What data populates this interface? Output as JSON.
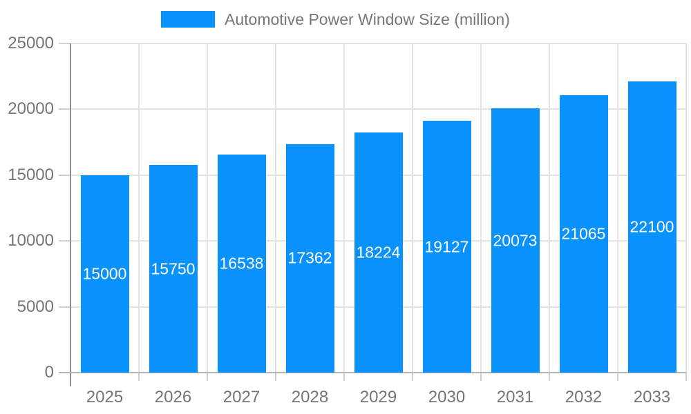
{
  "legend": {
    "label": "Automotive Power Window Size (million)"
  },
  "chart_data": {
    "type": "bar",
    "title": "Automotive Power Window Size (million)",
    "categories": [
      "2025",
      "2026",
      "2027",
      "2028",
      "2029",
      "2030",
      "2031",
      "2032",
      "2033"
    ],
    "values": [
      15000,
      15750,
      16538,
      17362,
      18224,
      19127,
      20073,
      21065,
      22100
    ],
    "value_labels": [
      "15000",
      "15750",
      "16538",
      "17362",
      "18224",
      "19127",
      "20073",
      "21065",
      "22100"
    ],
    "series": [
      {
        "name": "Automotive Power Window Size (million)",
        "values": [
          15000,
          15750,
          16538,
          17362,
          18224,
          19127,
          20073,
          21065,
          22100
        ]
      }
    ],
    "xlabel": "",
    "ylabel": "",
    "ylim": [
      0,
      25000
    ],
    "y_ticks": [
      0,
      5000,
      10000,
      15000,
      20000,
      25000
    ],
    "y_tick_labels": [
      "0",
      "5000",
      "10000",
      "15000",
      "20000",
      "25000"
    ],
    "grid": true,
    "legend_position": "top",
    "value_labels_position": "center-of-bar"
  },
  "colors": {
    "bar": "#0992fb",
    "bar_label": "#ffffff",
    "grid_line": "#e3e3e3",
    "x_axis_line": "#b4b4b4",
    "y_axis_line": "#8e8e8e",
    "tick_mark": "#cfcfcf",
    "axis_text": "#757575",
    "legend_text": "#777777",
    "background": "#ffffff"
  }
}
